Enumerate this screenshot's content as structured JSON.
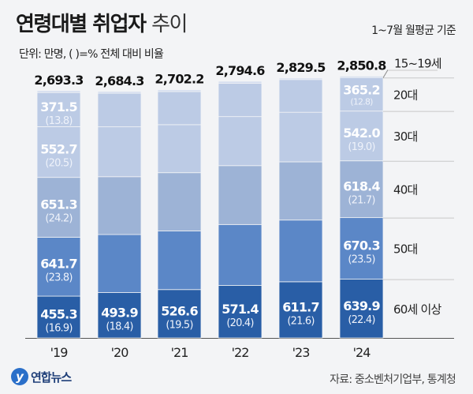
{
  "header": {
    "title_bold": "연령대별 취업자",
    "title_light": "추이",
    "basis": "1~7월 월평균 기준",
    "unit": "단위: 만명, ( )=% 전체 대비 비율"
  },
  "footer": {
    "logo": "연합뉴스",
    "source": "자료: 중소벤처기업부, 통계청"
  },
  "chart_data": {
    "type": "bar",
    "stacked": true,
    "categories": [
      "'19",
      "'20",
      "'21",
      "'22",
      "'23",
      "'24"
    ],
    "totals": [
      "2,693.3",
      "2,684.3",
      "2,702.2",
      "2,794.6",
      "2,829.5",
      "2,850.8"
    ],
    "series": [
      {
        "name": "60세 이상",
        "color": "#295ea6",
        "values": [
          455.3,
          493.9,
          526.6,
          571.4,
          611.7,
          639.9
        ],
        "pct": [
          "16.9",
          "18.4",
          "19.5",
          "20.4",
          "21.6",
          "22.4"
        ]
      },
      {
        "name": "50대",
        "color": "#5b87c7",
        "values": [
          641.7,
          632,
          638,
          664,
          672,
          670.3
        ],
        "pct": [
          "23.8",
          null,
          null,
          null,
          null,
          "23.5"
        ]
      },
      {
        "name": "40대",
        "color": "#9db3d6",
        "values": [
          651.3,
          630,
          635,
          641,
          634,
          618.4
        ],
        "pct": [
          "24.2",
          null,
          null,
          null,
          null,
          "21.7"
        ]
      },
      {
        "name": "30대",
        "color": "#bccbe5",
        "values": [
          552.7,
          543,
          523,
          534,
          540,
          542.0
        ],
        "pct": [
          "20.5",
          null,
          null,
          null,
          null,
          "19.0"
        ]
      },
      {
        "name": "20대",
        "color": "#bccbe5",
        "values": [
          371.5,
          366,
          360,
          364,
          356,
          365.2
        ],
        "pct": [
          "13.8",
          null,
          null,
          null,
          null,
          "12.8"
        ]
      },
      {
        "name": "15~19세",
        "color": "#d3ddef",
        "values": [
          20.8,
          19.4,
          19.6,
          20.2,
          15.8,
          15.0
        ],
        "pct": [
          null,
          null,
          null,
          null,
          null,
          null
        ]
      }
    ],
    "ylabel": "",
    "xlabel": "",
    "ylim": [
      0,
      2850.8
    ],
    "grid": false,
    "legend": "right"
  }
}
